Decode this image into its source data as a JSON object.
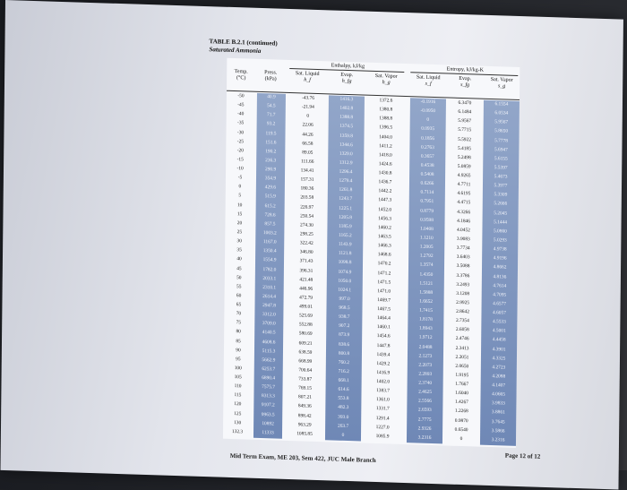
{
  "caption": {
    "line1": "TABLE B.2.1 (continued)",
    "line2": "Saturated Ammonia"
  },
  "header": {
    "temp": "Temp.",
    "temp_unit": "(°C)",
    "press": "Press.",
    "press_unit": "(kPa)",
    "enthalpy_group": "Enthalpy, kJ/kg",
    "entropy_group": "Entropy, kJ/kg-K",
    "h_sat_liq": "Sat. Liquid",
    "h_sat_liq_sym": "h_f",
    "h_evap": "Evap.",
    "h_evap_sym": "h_fg",
    "h_sat_vap": "Sat. Vapor",
    "h_sat_vap_sym": "h_g",
    "s_sat_liq": "Sat. Liquid",
    "s_sat_liq_sym": "s_f",
    "s_evap": "Evap.",
    "s_evap_sym": "s_fg",
    "s_sat_vap": "Sat. Vapor",
    "s_sat_vap_sym": "s_g"
  },
  "columns": {
    "temp": [
      "-50",
      "-45",
      "-40",
      "-35",
      "-30",
      "-25",
      "-20",
      "-15",
      "-10",
      "-5",
      "0",
      "5",
      "10",
      "15",
      "20",
      "25",
      "30",
      "35",
      "40",
      "45",
      "50",
      "55",
      "60",
      "65",
      "70",
      "75",
      "80",
      "85",
      "90",
      "95",
      "100",
      "105",
      "110",
      "115",
      "120",
      "125",
      "130",
      "132.3"
    ],
    "press": [
      "40.9",
      "54.5",
      "71.7",
      "93.2",
      "119.5",
      "151.6",
      "190.2",
      "236.3",
      "290.9",
      "354.9",
      "429.6",
      "515.9",
      "615.2",
      "728.6",
      "857.5",
      "1003.2",
      "1167.0",
      "1350.4",
      "1554.9",
      "1782.0",
      "2033.1",
      "2310.1",
      "2614.4",
      "2947.8",
      "3312.0",
      "3709.0",
      "4140.5",
      "4608.6",
      "5115.3",
      "5662.9",
      "6253.7",
      "6890.4",
      "7575.7",
      "8313.3",
      "9107.2",
      "9963.5",
      "10892",
      "11333"
    ],
    "h_f": [
      "-43.76",
      "-21.94",
      "0",
      "22.06",
      "44.26",
      "66.58",
      "89.05",
      "111.66",
      "134.41",
      "157.31",
      "180.36",
      "203.58",
      "226.97",
      "250.54",
      "274.30",
      "298.25",
      "322.42",
      "346.80",
      "371.43",
      "396.31",
      "421.48",
      "446.96",
      "472.79",
      "499.01",
      "525.69",
      "552.88",
      "580.69",
      "609.21",
      "638.59",
      "668.99",
      "700.64",
      "733.87",
      "769.15",
      "807.21",
      "849.36",
      "898.42",
      "963.29",
      "1085.85"
    ],
    "h_fg": [
      "1416.3",
      "1402.8",
      "1388.8",
      "1374.5",
      "1359.8",
      "1344.6",
      "1329.0",
      "1312.9",
      "1296.4",
      "1279.4",
      "1261.8",
      "1243.7",
      "1225.1",
      "1205.8",
      "1185.9",
      "1165.2",
      "1143.9",
      "1121.8",
      "1098.8",
      "1074.9",
      "1050.0",
      "1024.1",
      "997.0",
      "968.5",
      "938.7",
      "907.2",
      "873.9",
      "838.6",
      "800.8",
      "760.2",
      "716.2",
      "668.1",
      "614.6",
      "553.8",
      "482.3",
      "393.0",
      "263.7",
      "0"
    ],
    "h_g": [
      "1372.6",
      "1380.8",
      "1388.8",
      "1396.5",
      "1404.0",
      "1411.2",
      "1418.0",
      "1424.6",
      "1430.8",
      "1436.7",
      "1442.2",
      "1447.3",
      "1452.0",
      "1456.3",
      "1460.2",
      "1463.5",
      "1466.3",
      "1468.6",
      "1470.2",
      "1471.2",
      "1471.5",
      "1471.0",
      "1469.7",
      "1467.5",
      "1464.4",
      "1460.1",
      "1454.6",
      "1447.8",
      "1439.4",
      "1429.2",
      "1416.9",
      "1402.0",
      "1383.7",
      "1361.0",
      "1331.7",
      "1291.4",
      "1227.0",
      "1085.9"
    ],
    "s_f": [
      "-0.1916",
      "-0.0950",
      "0",
      "0.0935",
      "0.1856",
      "0.2763",
      "0.3657",
      "0.4538",
      "0.5408",
      "0.6266",
      "0.7114",
      "0.7951",
      "0.8779",
      "0.9598",
      "1.0408",
      "1.1210",
      "1.2005",
      "1.2792",
      "1.3574",
      "1.4350",
      "1.5121",
      "1.5888",
      "1.6652",
      "1.7415",
      "1.8178",
      "1.8943",
      "1.9712",
      "2.0488",
      "2.1273",
      "2.2073",
      "2.2893",
      "2.3740",
      "2.4625",
      "2.5566",
      "2.6593",
      "2.7775",
      "2.9326",
      "3.2316"
    ],
    "s_fg": [
      "6.3470",
      "6.1484",
      "5.9567",
      "5.7715",
      "5.5922",
      "5.4185",
      "5.2498",
      "5.0859",
      "4.9265",
      "4.7711",
      "4.6195",
      "4.4715",
      "4.3266",
      "4.1846",
      "4.0452",
      "3.9083",
      "3.7734",
      "3.6403",
      "3.5088",
      "3.3786",
      "3.2493",
      "3.1208",
      "2.9925",
      "2.8642",
      "2.7354",
      "2.6058",
      "2.4746",
      "2.3413",
      "2.2051",
      "2.0650",
      "1.9195",
      "1.7667",
      "1.6040",
      "1.4267",
      "1.2268",
      "0.9870",
      "0.6540",
      "0"
    ],
    "s_g": [
      "6.1554",
      "6.0534",
      "5.9567",
      "5.8650",
      "5.7778",
      "5.6947",
      "5.6155",
      "5.5397",
      "5.4673",
      "5.3977",
      "5.3309",
      "5.2666",
      "5.2045",
      "5.1444",
      "5.0860",
      "5.0293",
      "4.9738",
      "4.9196",
      "4.8662",
      "4.8136",
      "4.7614",
      "4.7095",
      "4.6577",
      "4.6057",
      "4.5533",
      "4.5001",
      "4.4458",
      "4.3901",
      "4.3325",
      "4.2723",
      "4.2088",
      "4.1407",
      "4.0665",
      "3.9833",
      "3.8861",
      "3.7645",
      "3.5866",
      "3.2316"
    ]
  },
  "footer": "Mid Term Exam, ME 203, Sem 422, JUC Male Branch",
  "page": "Page 12 of 12",
  "colors": {
    "shade": "#7f96c1",
    "paper": "#eceef3"
  }
}
